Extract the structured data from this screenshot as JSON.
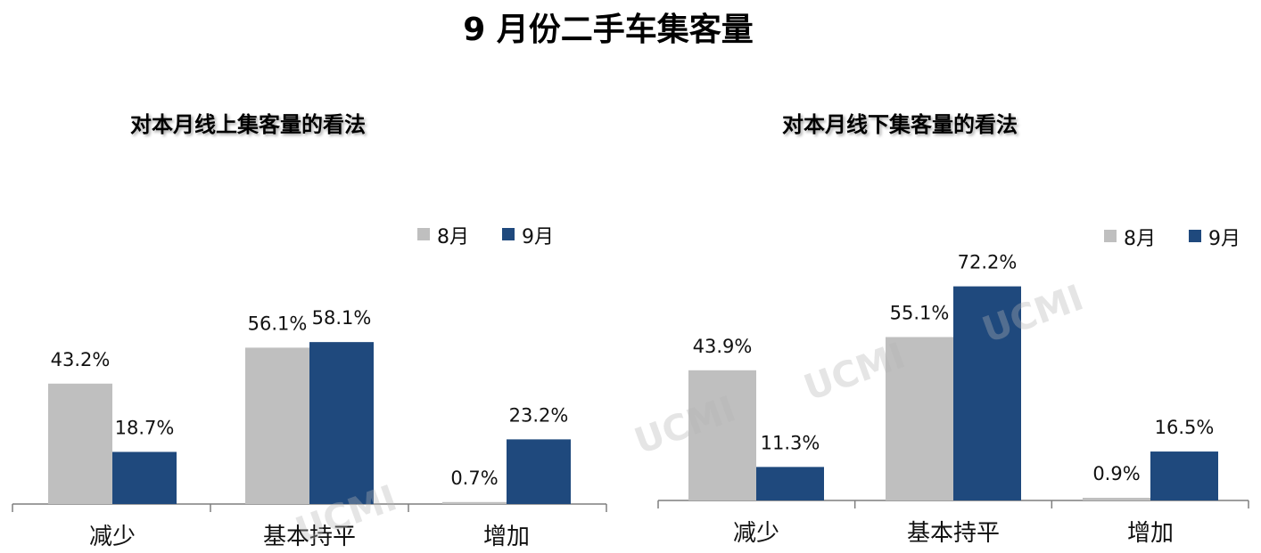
{
  "page_title": "9 月份二手车集客量",
  "watermark": "UCMI",
  "colors": {
    "aug": "#bfbfbf",
    "sep": "#1f497d"
  },
  "chart_data": [
    {
      "type": "bar",
      "title": "对本月线上集客量的看法",
      "categories": [
        "减少",
        "基本持平",
        "增加"
      ],
      "series": [
        {
          "name": "8月",
          "values": [
            43.2,
            56.1,
            0.7
          ],
          "labels": [
            "43.2%",
            "56.1%",
            "0.7%"
          ]
        },
        {
          "name": "9月",
          "values": [
            18.7,
            58.1,
            23.2
          ],
          "labels": [
            "18.7%",
            "58.1%",
            "23.2%"
          ]
        }
      ],
      "ylim": [
        0,
        80
      ],
      "legend": "top-right"
    },
    {
      "type": "bar",
      "title": "对本月线下集客量的看法",
      "categories": [
        "减少",
        "基本持平",
        "增加"
      ],
      "series": [
        {
          "name": "8月",
          "values": [
            43.9,
            55.1,
            0.9
          ],
          "labels": [
            "43.9%",
            "55.1%",
            "0.9%"
          ]
        },
        {
          "name": "9月",
          "values": [
            11.3,
            72.2,
            16.5
          ],
          "labels": [
            "11.3%",
            "72.2%",
            "16.5%"
          ]
        }
      ],
      "ylim": [
        0,
        80
      ],
      "legend": "top-right"
    }
  ]
}
